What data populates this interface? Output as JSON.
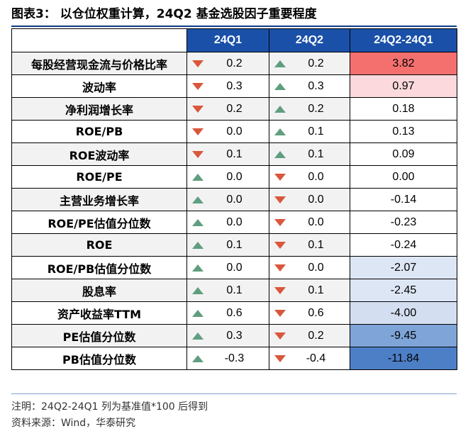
{
  "title": "图表3：   以仓位权重计算，24Q2 基金选股因子重要程度",
  "columns": [
    "",
    "24Q1",
    "24Q2",
    "24Q2-24Q1"
  ],
  "colors": {
    "header": "#1a50a8",
    "title_rule": "#0d3a86",
    "arrow_up": "#5f9e7f",
    "arrow_down": "#d9573b",
    "pos_high": "#f4706e",
    "pos_mid": "#fbd9dc",
    "neg_light": "#dde6f5",
    "neg_mid": "#7ea4d8",
    "neg_dark": "#4d7fc6"
  },
  "rows": [
    {
      "factor": "每股经营现金流与价格比率",
      "q1": "0.2",
      "q1_dir": "down",
      "q2": "0.2",
      "q2_dir": "up",
      "diff": "3.82",
      "diff_color": "#f4706e"
    },
    {
      "factor": "波动率",
      "q1": "0.3",
      "q1_dir": "down",
      "q2": "0.3",
      "q2_dir": "up",
      "diff": "0.97",
      "diff_color": "#fbd9dc"
    },
    {
      "factor": "净利润增长率",
      "q1": "0.2",
      "q1_dir": "down",
      "q2": "0.2",
      "q2_dir": "up",
      "diff": "0.18",
      "diff_color": "#ffffff"
    },
    {
      "factor": "ROE/PB",
      "q1": "0.0",
      "q1_dir": "down",
      "q2": "0.1",
      "q2_dir": "up",
      "diff": "0.13",
      "diff_color": "#ffffff"
    },
    {
      "factor": "ROE波动率",
      "q1": "0.1",
      "q1_dir": "down",
      "q2": "0.1",
      "q2_dir": "up",
      "diff": "0.09",
      "diff_color": "#ffffff"
    },
    {
      "factor": "ROE/PE",
      "q1": "0.0",
      "q1_dir": "up",
      "q2": "0.0",
      "q2_dir": "down",
      "diff": "0.00",
      "diff_color": "#ffffff"
    },
    {
      "factor": "主营业务增长率",
      "q1": "0.0",
      "q1_dir": "up",
      "q2": "0.0",
      "q2_dir": "down",
      "diff": "-0.14",
      "diff_color": "#ffffff"
    },
    {
      "factor": "ROE/PE估值分位数",
      "q1": "0.0",
      "q1_dir": "up",
      "q2": "0.0",
      "q2_dir": "down",
      "diff": "-0.23",
      "diff_color": "#ffffff"
    },
    {
      "factor": "ROE",
      "q1": "0.1",
      "q1_dir": "up",
      "q2": "0.1",
      "q2_dir": "down",
      "diff": "-0.24",
      "diff_color": "#ffffff"
    },
    {
      "factor": "ROE/PB估值分位数",
      "q1": "0.0",
      "q1_dir": "up",
      "q2": "0.0",
      "q2_dir": "down",
      "diff": "-2.07",
      "diff_color": "#dde6f5"
    },
    {
      "factor": "股息率",
      "q1": "0.1",
      "q1_dir": "up",
      "q2": "0.1",
      "q2_dir": "down",
      "diff": "-2.45",
      "diff_color": "#dde6f5"
    },
    {
      "factor": "资产收益率TTM",
      "q1": "0.6",
      "q1_dir": "up",
      "q2": "0.6",
      "q2_dir": "down",
      "diff": "-4.00",
      "diff_color": "#d4def1"
    },
    {
      "factor": "PE估值分位数",
      "q1": "0.3",
      "q1_dir": "up",
      "q2": "0.2",
      "q2_dir": "down",
      "diff": "-9.45",
      "diff_color": "#7ea4d8"
    },
    {
      "factor": "PB估值分位数",
      "q1": "-0.3",
      "q1_dir": "up",
      "q2": "-0.4",
      "q2_dir": "down",
      "diff": "-11.84",
      "diff_color": "#4d7fc6"
    }
  ],
  "notes": [
    "注明：24Q2-24Q1 列为基准值*100 后得到",
    "资料来源：Wind，华泰研究"
  ]
}
